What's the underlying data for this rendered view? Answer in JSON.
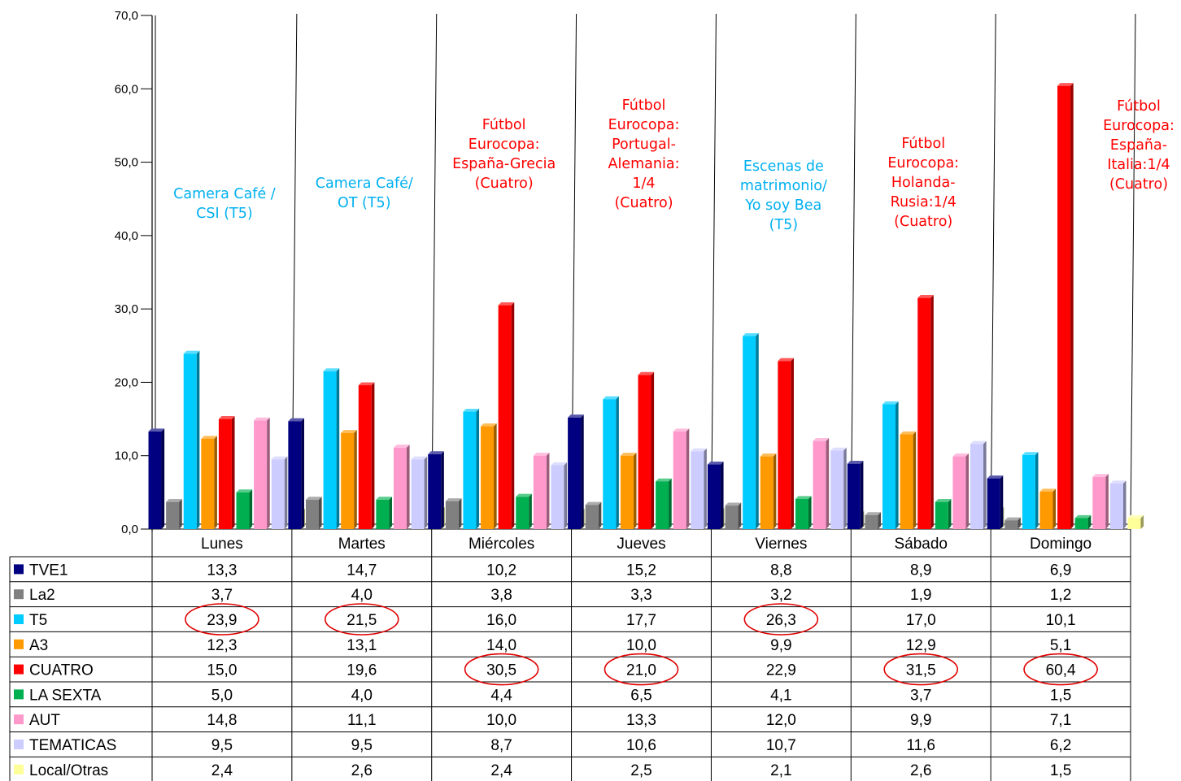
{
  "chart_data": {
    "type": "bar",
    "categories": [
      "Lunes",
      "Martes",
      "Miércoles",
      "Jueves",
      "Viernes",
      "Sábado",
      "Domingo"
    ],
    "y_ticks": [
      "0,0",
      "10,0",
      "20,0",
      "30,0",
      "40,0",
      "50,0",
      "60,0",
      "70,0"
    ],
    "ylim": [
      0,
      70
    ],
    "grid": false,
    "legend": "data table below the chart",
    "series": [
      {
        "name": "TVE1",
        "color": "#000080",
        "values": [
          13.3,
          14.7,
          10.2,
          15.2,
          8.8,
          8.9,
          6.9
        ],
        "labels": [
          "13,3",
          "14,7",
          "10,2",
          "15,2",
          "8,8",
          "8,9",
          "6,9"
        ]
      },
      {
        "name": "La2",
        "color": "#808080",
        "values": [
          3.7,
          4.0,
          3.8,
          3.3,
          3.2,
          1.9,
          1.2
        ],
        "labels": [
          "3,7",
          "4,0",
          "3,8",
          "3,3",
          "3,2",
          "1,9",
          "1,2"
        ]
      },
      {
        "name": "T5",
        "color": "#00CCFF",
        "values": [
          23.9,
          21.5,
          16.0,
          17.7,
          26.3,
          17.0,
          10.1
        ],
        "labels": [
          "23,9",
          "21,5",
          "16,0",
          "17,7",
          "26,3",
          "17,0",
          "10,1"
        ]
      },
      {
        "name": "A3",
        "color": "#FF9900",
        "values": [
          12.3,
          13.1,
          14.0,
          10.0,
          9.9,
          12.9,
          5.1
        ],
        "labels": [
          "12,3",
          "13,1",
          "14,0",
          "10,0",
          "9,9",
          "12,9",
          "5,1"
        ]
      },
      {
        "name": "CUATRO",
        "color": "#FF0000",
        "values": [
          15.0,
          19.6,
          30.5,
          21.0,
          22.9,
          31.5,
          60.4
        ],
        "labels": [
          "15,0",
          "19,6",
          "30,5",
          "21,0",
          "22,9",
          "31,5",
          "60,4"
        ]
      },
      {
        "name": "LA SEXTA",
        "color": "#00B050",
        "values": [
          5.0,
          4.0,
          4.4,
          6.5,
          4.1,
          3.7,
          1.5
        ],
        "labels": [
          "5,0",
          "4,0",
          "4,4",
          "6,5",
          "4,1",
          "3,7",
          "1,5"
        ]
      },
      {
        "name": "AUT",
        "color": "#FF99CC",
        "values": [
          14.8,
          11.1,
          10.0,
          13.3,
          12.0,
          9.9,
          7.1
        ],
        "labels": [
          "14,8",
          "11,1",
          "10,0",
          "13,3",
          "12,0",
          "9,9",
          "7,1"
        ]
      },
      {
        "name": "TEMATICAS",
        "color": "#CCCCFF",
        "values": [
          9.5,
          9.5,
          8.7,
          10.6,
          10.7,
          11.6,
          6.2
        ],
        "labels": [
          "9,5",
          "9,5",
          "8,7",
          "10,6",
          "10,7",
          "11,6",
          "6,2"
        ]
      },
      {
        "name": "Local/Otras",
        "color": "#FFFF99",
        "values": [
          2.4,
          2.6,
          2.4,
          2.5,
          2.1,
          2.6,
          1.5
        ],
        "labels": [
          "2,4",
          "2,6",
          "2,4",
          "2,5",
          "2,1",
          "2,6",
          "1,5"
        ]
      }
    ],
    "annotations": [
      {
        "category": "Lunes",
        "color": "#00B0F0",
        "lines": [
          "Camera Café /",
          "CSI (T5)"
        ]
      },
      {
        "category": "Martes",
        "color": "#00B0F0",
        "lines": [
          "Camera Café/",
          "OT (T5)"
        ]
      },
      {
        "category": "Miércoles",
        "color": "#FF0000",
        "lines": [
          "Fútbol",
          "Eurocopa:",
          "España-Grecia",
          "(Cuatro)"
        ]
      },
      {
        "category": "Jueves",
        "color": "#FF0000",
        "lines": [
          "Fútbol",
          "Eurocopa:",
          "Portugal-",
          "Alemania:",
          "1/4",
          "(Cuatro)"
        ]
      },
      {
        "category": "Viernes",
        "color": "#00B0F0",
        "lines": [
          "Escenas de",
          "matrimonio/",
          "Yo soy Bea",
          "(T5)"
        ]
      },
      {
        "category": "Sábado",
        "color": "#FF0000",
        "lines": [
          "Fútbol",
          "Eurocopa:",
          "Holanda-",
          "Rusia:1/4",
          "(Cuatro)"
        ]
      },
      {
        "category": "Domingo",
        "color": "#FF0000",
        "lines": [
          "Fútbol",
          "Eurocopa:",
          "España-",
          "Italia:1/4",
          "(Cuatro)"
        ]
      }
    ],
    "highlighted_cells": [
      {
        "series": "T5",
        "category": "Lunes"
      },
      {
        "series": "T5",
        "category": "Martes"
      },
      {
        "series": "T5",
        "category": "Viernes"
      },
      {
        "series": "CUATRO",
        "category": "Miércoles"
      },
      {
        "series": "CUATRO",
        "category": "Jueves"
      },
      {
        "series": "CUATRO",
        "category": "Sábado"
      },
      {
        "series": "CUATRO",
        "category": "Domingo"
      }
    ],
    "highlight_color": "#E00000"
  }
}
